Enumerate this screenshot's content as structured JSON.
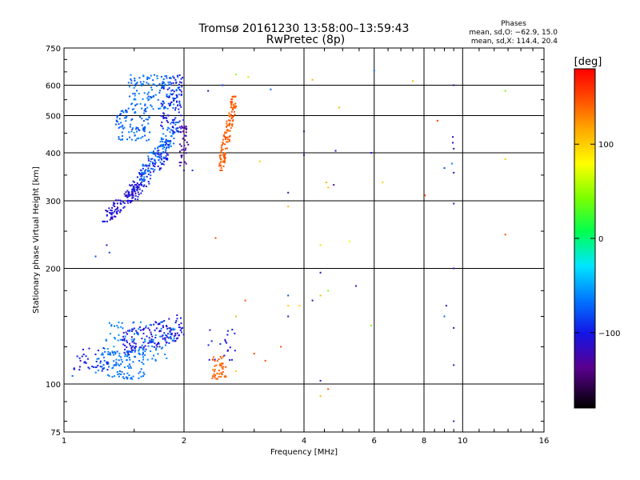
{
  "header": {
    "title": "Tromsø 20161230 13:58:00–13:59:43",
    "subtitle": "RwPretec (8p)"
  },
  "stats": {
    "title": "Phases",
    "line_o": "mean, sd,O: −62.9, 15.0",
    "line_x": "mean, sd,X: 114.4, 20.4"
  },
  "chart_data": {
    "type": "scatter",
    "xlabel": "Frequency [MHz]",
    "ylabel": "Stationary phase Virtual Height [km]",
    "x_scale": "log",
    "y_scale": "log",
    "xlim": [
      1,
      16
    ],
    "ylim": [
      75,
      750
    ],
    "x_ticks": [
      1,
      2,
      4,
      6,
      8,
      10,
      16
    ],
    "x_tick_labels": [
      "1",
      "2",
      "4",
      "6",
      "8",
      "10",
      "16"
    ],
    "y_ticks": [
      75,
      100,
      200,
      300,
      400,
      500,
      600,
      750
    ],
    "y_tick_labels": [
      "75",
      "100",
      "200",
      "300",
      "400",
      "500",
      "600",
      "750"
    ],
    "grid": true,
    "colorbar": {
      "label": "[deg]",
      "min": -180,
      "max": 180,
      "ticks": [
        100,
        0,
        -100
      ],
      "tick_labels": [
        "100",
        "0",
        "−100"
      ]
    },
    "clusters": [
      {
        "n": 120,
        "f": [
          1.25,
          1.55
        ],
        "h": [
          265,
          330
        ],
        "phase": [
          -125,
          -95
        ],
        "slope": 0.95
      },
      {
        "n": 130,
        "f": [
          1.45,
          1.85
        ],
        "h": [
          300,
          430
        ],
        "phase": [
          -115,
          -85
        ],
        "slope": 0.95
      },
      {
        "n": 110,
        "f": [
          1.55,
          1.95
        ],
        "h": [
          340,
          480
        ],
        "phase": [
          -75,
          -60
        ],
        "slope": 1.0
      },
      {
        "n": 90,
        "f": [
          1.35,
          1.65
        ],
        "h": [
          430,
          520
        ],
        "phase": [
          -85,
          -60
        ],
        "slope": 0
      },
      {
        "n": 140,
        "f": [
          1.45,
          1.95
        ],
        "h": [
          520,
          640
        ],
        "phase": [
          -80,
          -55
        ],
        "slope": 0
      },
      {
        "n": 90,
        "f": [
          1.75,
          2.0
        ],
        "h": [
          450,
          640
        ],
        "phase": [
          -115,
          -85
        ],
        "slope": 0
      },
      {
        "n": 35,
        "f": [
          1.95,
          2.05
        ],
        "h": [
          370,
          470
        ],
        "phase": [
          -140,
          -120
        ],
        "slope": 0
      },
      {
        "n": 150,
        "f": [
          2.45,
          2.7
        ],
        "h": [
          360,
          560
        ],
        "phase": [
          135,
          150
        ],
        "slope": 1.1
      },
      {
        "n": 110,
        "f": [
          1.2,
          1.6
        ],
        "h": [
          103,
          122
        ],
        "phase": [
          -75,
          -60
        ],
        "slope": 0
      },
      {
        "n": 160,
        "f": [
          1.4,
          2.0
        ],
        "h": [
          112,
          160
        ],
        "phase": [
          -120,
          -90
        ],
        "slope": 0.3
      },
      {
        "n": 90,
        "f": [
          1.25,
          1.9
        ],
        "h": [
          115,
          145
        ],
        "phase": [
          -70,
          -55
        ],
        "slope": 0
      },
      {
        "n": 35,
        "f": [
          1.05,
          1.3
        ],
        "h": [
          108,
          125
        ],
        "phase": [
          -105,
          -90
        ],
        "slope": 0
      },
      {
        "n": 45,
        "f": [
          2.35,
          2.55
        ],
        "h": [
          103,
          118
        ],
        "phase": [
          135,
          150
        ],
        "slope": 0
      },
      {
        "n": 20,
        "f": [
          2.3,
          2.7
        ],
        "h": [
          115,
          140
        ],
        "phase": [
          -115,
          -90
        ],
        "slope": 0
      }
    ],
    "points": [
      {
        "f": 2.3,
        "h": 580,
        "phase": -120
      },
      {
        "f": 2.5,
        "h": 600,
        "phase": -85
      },
      {
        "f": 2.7,
        "h": 640,
        "phase": 50
      },
      {
        "f": 2.9,
        "h": 630,
        "phase": 60
      },
      {
        "f": 3.3,
        "h": 585,
        "phase": -70
      },
      {
        "f": 3.1,
        "h": 380,
        "phase": 100
      },
      {
        "f": 2.4,
        "h": 240,
        "phase": 150
      },
      {
        "f": 4.2,
        "h": 620,
        "phase": 110
      },
      {
        "f": 4.9,
        "h": 525,
        "phase": 110
      },
      {
        "f": 4.0,
        "h": 455,
        "phase": -120
      },
      {
        "f": 4.0,
        "h": 395,
        "phase": -115
      },
      {
        "f": 4.8,
        "h": 405,
        "phase": -115
      },
      {
        "f": 3.65,
        "h": 315,
        "phase": -120
      },
      {
        "f": 3.65,
        "h": 290,
        "phase": 110
      },
      {
        "f": 4.55,
        "h": 335,
        "phase": 110
      },
      {
        "f": 4.6,
        "h": 325,
        "phase": 105
      },
      {
        "f": 4.75,
        "h": 330,
        "phase": -130
      },
      {
        "f": 4.4,
        "h": 230,
        "phase": 90
      },
      {
        "f": 5.2,
        "h": 235,
        "phase": 75
      },
      {
        "f": 5.9,
        "h": 400,
        "phase": -115
      },
      {
        "f": 6.0,
        "h": 655,
        "phase": -70
      },
      {
        "f": 6.3,
        "h": 335,
        "phase": 100
      },
      {
        "f": 7.5,
        "h": 615,
        "phase": 110
      },
      {
        "f": 8.05,
        "h": 310,
        "phase": 150
      },
      {
        "f": 8.65,
        "h": 485,
        "phase": 155
      },
      {
        "f": 9.5,
        "h": 600,
        "phase": -120
      },
      {
        "f": 9.45,
        "h": 440,
        "phase": -120
      },
      {
        "f": 9.45,
        "h": 425,
        "phase": -120
      },
      {
        "f": 9.5,
        "h": 410,
        "phase": -115
      },
      {
        "f": 9.4,
        "h": 375,
        "phase": -65
      },
      {
        "f": 9.5,
        "h": 355,
        "phase": -120
      },
      {
        "f": 9.5,
        "h": 295,
        "phase": -120
      },
      {
        "f": 9.5,
        "h": 200,
        "phase": -115
      },
      {
        "f": 9.5,
        "h": 140,
        "phase": -120
      },
      {
        "f": 9.5,
        "h": 112,
        "phase": -120
      },
      {
        "f": 9.5,
        "h": 80,
        "phase": -120
      },
      {
        "f": 9.0,
        "h": 365,
        "phase": -85
      },
      {
        "f": 9.1,
        "h": 160,
        "phase": -120
      },
      {
        "f": 9.0,
        "h": 150,
        "phase": -70
      },
      {
        "f": 12.8,
        "h": 580,
        "phase": 40
      },
      {
        "f": 12.8,
        "h": 385,
        "phase": 100
      },
      {
        "f": 12.8,
        "h": 245,
        "phase": 150
      },
      {
        "f": 4.4,
        "h": 195,
        "phase": -120
      },
      {
        "f": 4.6,
        "h": 175,
        "phase": 40
      },
      {
        "f": 4.4,
        "h": 170,
        "phase": 110
      },
      {
        "f": 3.65,
        "h": 170,
        "phase": -80
      },
      {
        "f": 3.65,
        "h": 160,
        "phase": 100
      },
      {
        "f": 3.65,
        "h": 150,
        "phase": -120
      },
      {
        "f": 4.2,
        "h": 165,
        "phase": -120
      },
      {
        "f": 3.9,
        "h": 160,
        "phase": 100
      },
      {
        "f": 5.4,
        "h": 180,
        "phase": -110
      },
      {
        "f": 5.9,
        "h": 142,
        "phase": 40
      },
      {
        "f": 2.85,
        "h": 165,
        "phase": 150
      },
      {
        "f": 2.7,
        "h": 150,
        "phase": 110
      },
      {
        "f": 3.5,
        "h": 125,
        "phase": 150
      },
      {
        "f": 3.2,
        "h": 115,
        "phase": 150
      },
      {
        "f": 2.7,
        "h": 108,
        "phase": 100
      },
      {
        "f": 3.0,
        "h": 120,
        "phase": 150
      },
      {
        "f": 4.4,
        "h": 102,
        "phase": -120
      },
      {
        "f": 4.6,
        "h": 97,
        "phase": 150
      },
      {
        "f": 4.4,
        "h": 93,
        "phase": 110
      },
      {
        "f": 2.0,
        "h": 360,
        "phase": -120
      },
      {
        "f": 2.1,
        "h": 360,
        "phase": -85
      },
      {
        "f": 1.3,
        "h": 220,
        "phase": -85
      },
      {
        "f": 1.2,
        "h": 215,
        "phase": -80
      },
      {
        "f": 1.28,
        "h": 230,
        "phase": -110
      },
      {
        "f": 1.05,
        "h": 105,
        "phase": -75
      },
      {
        "f": 1.1,
        "h": 115,
        "phase": -120
      }
    ]
  }
}
